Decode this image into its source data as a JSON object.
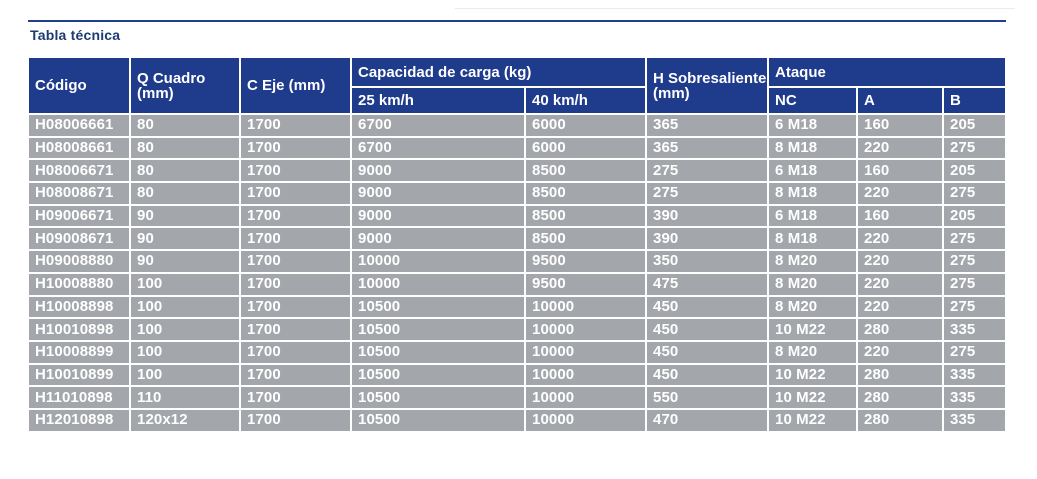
{
  "title": "Tabla técnica",
  "colors": {
    "header_bg": "#1e3b8c",
    "cell_bg": "#a3a6aa",
    "title": "#1d3a72"
  },
  "headers": {
    "codigo": "Código",
    "q_cuadro": "Q Cuadro (mm)",
    "c_eje": "C Eje (mm)",
    "capacidad": "Capacidad de carga (kg)",
    "cap_25": "25 km/h",
    "cap_40": "40 km/h",
    "h_sobresaliente": "H Sobresaliente (mm)",
    "ataque": "Ataque",
    "nc": "NC",
    "a": "A",
    "b": "B"
  },
  "rows": [
    [
      "H08006661",
      "80",
      "1700",
      "6700",
      "6000",
      "365",
      "6 M18",
      "160",
      "205"
    ],
    [
      "H08008661",
      "80",
      "1700",
      "6700",
      "6000",
      "365",
      "8 M18",
      "220",
      "275"
    ],
    [
      "H08006671",
      "80",
      "1700",
      "9000",
      "8500",
      "275",
      "6 M18",
      "160",
      "205"
    ],
    [
      "H08008671",
      "80",
      "1700",
      "9000",
      "8500",
      "275",
      "8 M18",
      "220",
      "275"
    ],
    [
      "H09006671",
      "90",
      "1700",
      "9000",
      "8500",
      "390",
      "6 M18",
      "160",
      "205"
    ],
    [
      "H09008671",
      "90",
      "1700",
      "9000",
      "8500",
      "390",
      "8 M18",
      "220",
      "275"
    ],
    [
      "H09008880",
      "90",
      "1700",
      "10000",
      "9500",
      "350",
      "8 M20",
      "220",
      "275"
    ],
    [
      "H10008880",
      "100",
      "1700",
      "10000",
      "9500",
      "475",
      "8 M20",
      "220",
      "275"
    ],
    [
      "H10008898",
      "100",
      "1700",
      "10500",
      "10000",
      "450",
      "8 M20",
      "220",
      "275"
    ],
    [
      "H10010898",
      "100",
      "1700",
      "10500",
      "10000",
      "450",
      "10 M22",
      "280",
      "335"
    ],
    [
      "H10008899",
      "100",
      "1700",
      "10500",
      "10000",
      "450",
      "8 M20",
      "220",
      "275"
    ],
    [
      "H10010899",
      "100",
      "1700",
      "10500",
      "10000",
      "450",
      "10 M22",
      "280",
      "335"
    ],
    [
      "H11010898",
      "110",
      "1700",
      "10500",
      "10000",
      "550",
      "10 M22",
      "280",
      "335"
    ],
    [
      "H12010898",
      "120x12",
      "1700",
      "10500",
      "10000",
      "470",
      "10 M22",
      "280",
      "335"
    ]
  ]
}
